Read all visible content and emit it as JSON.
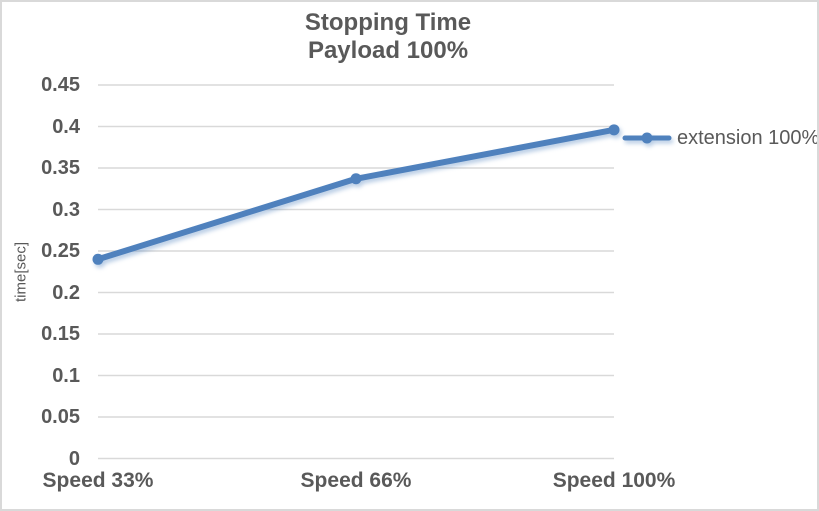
{
  "chart_data": {
    "type": "line",
    "title": "Stopping Time",
    "subtitle": "Payload 100%",
    "ylabel": "time[sec]",
    "xlabel": "",
    "categories": [
      "Speed 33%",
      "Speed 66%",
      "Speed 100%"
    ],
    "series": [
      {
        "name": "extension 100%",
        "values": [
          0.24,
          0.337,
          0.396
        ]
      }
    ],
    "ylim": [
      0,
      0.45
    ],
    "ytick_labels": [
      "0",
      "0.05",
      "0.1",
      "0.15",
      "0.2",
      "0.25",
      "0.3",
      "0.35",
      "0.4",
      "0.45"
    ],
    "grid": "horizontal",
    "legend_position": "right-of-plot",
    "legend_marker_icon": "line-with-round-marker-icon",
    "colors": {
      "line": "#4f81bd",
      "grid": "#d9d9d9",
      "text": "#595959",
      "frame_border": "#d9d9d9",
      "background": "#ffffff"
    }
  }
}
